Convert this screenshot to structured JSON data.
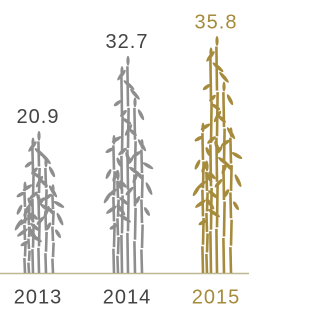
{
  "chart_data": {
    "type": "bar",
    "categories": [
      "2013",
      "2014",
      "2015"
    ],
    "values": [
      20.9,
      32.7,
      35.8
    ],
    "colors": [
      "#8e8e8e",
      "#8e8e8e",
      "#a68b3d"
    ],
    "label_colors": [
      "#444444",
      "#444444",
      "#a68b3d"
    ]
  }
}
